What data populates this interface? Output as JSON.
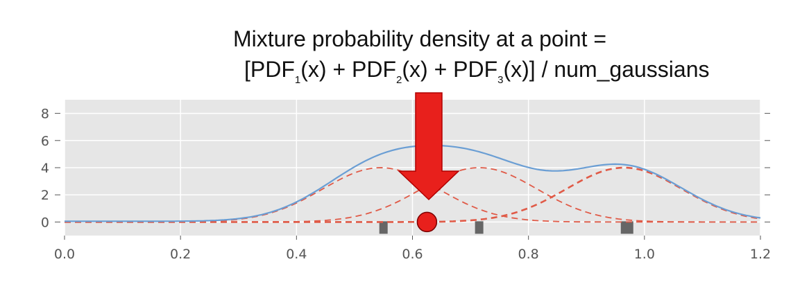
{
  "annotation": {
    "line1": "Mixture probability density at a point =",
    "line2": {
      "prefix": "[PDF",
      "sub1": "1",
      "after1": "(x) + PDF",
      "sub2": "2",
      "after2": "(x) + PDF",
      "sub3": "3",
      "suffix": "(x)] / num_gaussians"
    },
    "arrow_color": "#e8201c"
  },
  "chart_data": {
    "type": "line",
    "title": "",
    "xlabel": "",
    "ylabel": "",
    "xlim": [
      0.0,
      1.2
    ],
    "ylim": [
      -1.0,
      9.0
    ],
    "grid": true,
    "x_ticks": [
      0.0,
      0.2,
      0.4,
      0.6,
      0.8,
      1.0,
      1.2
    ],
    "x_tick_labels": [
      "0.0",
      "0.2",
      "0.4",
      "0.6",
      "0.8",
      "1.0",
      "1.2"
    ],
    "y_ticks": [
      0,
      2,
      4,
      6,
      8
    ],
    "y_tick_labels": [
      "0",
      "2",
      "4",
      "6",
      "8"
    ],
    "components": [
      {
        "mean": 0.545,
        "sd": 0.1,
        "peak": 4.0
      },
      {
        "mean": 0.715,
        "sd": 0.1,
        "peak": 4.0
      },
      {
        "mean": 0.965,
        "sd": 0.1,
        "peak": 4.0
      }
    ],
    "mixture": {
      "scale": 1.0,
      "baseline": 0.05
    },
    "samples": [
      0.55,
      0.715,
      0.97
    ],
    "marked_point": {
      "x": 0.625,
      "y": 0.0
    },
    "colors": {
      "mixture": "#6a9ed4",
      "components": "#e05a47",
      "samples": "#666666",
      "marked_point": "#e8201c",
      "plot_background": "#e6e6e6",
      "grid": "#ffffff"
    }
  }
}
